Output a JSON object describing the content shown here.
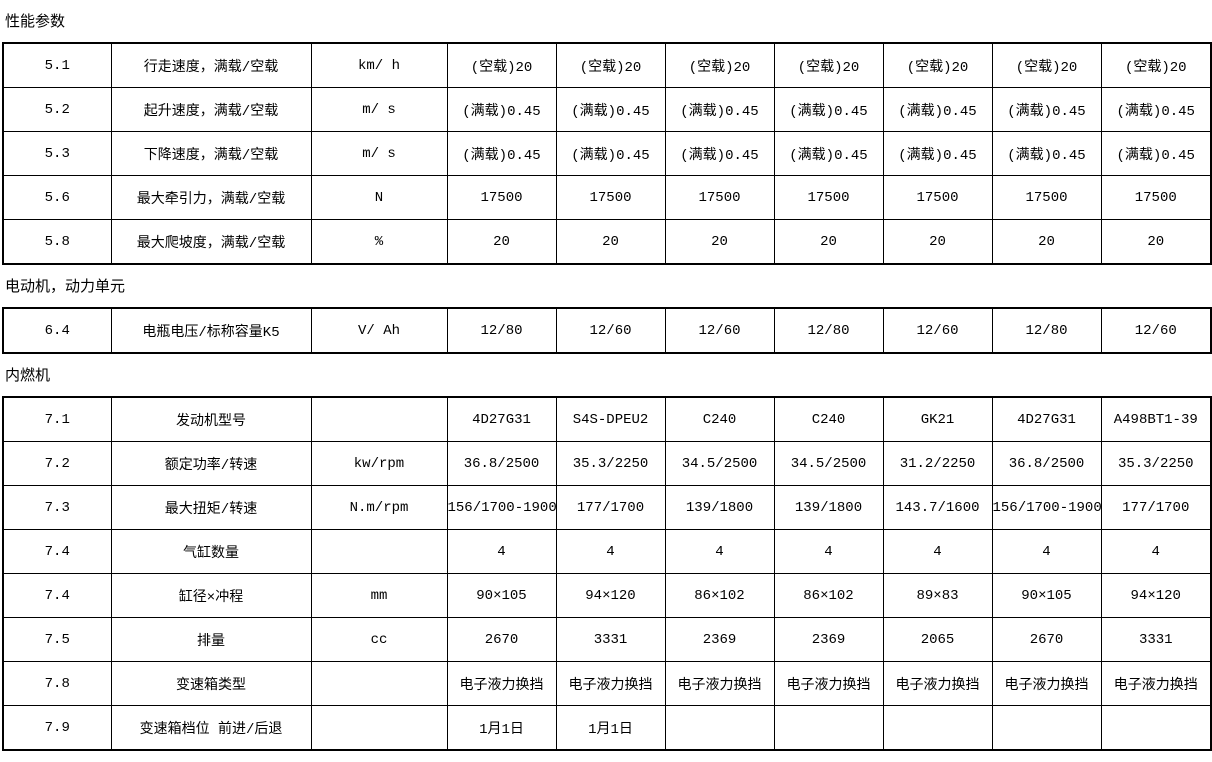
{
  "document": {
    "background": "#ffffff",
    "text_color": "#000000",
    "border_color": "#000000"
  },
  "sections": [
    {
      "title": "性能参数",
      "rows": [
        {
          "no": "5.1",
          "name": "行走速度，满载/空载",
          "unit": "km/ h",
          "values": [
            "(空载)20",
            "(空载)20",
            "(空载)20",
            "(空载)20",
            "(空载)20",
            "(空载)20",
            "(空载)20"
          ]
        },
        {
          "no": "5.2",
          "name": "起升速度，满载/空载",
          "unit": "m/ s",
          "values": [
            "(满载)0.45",
            "(满载)0.45",
            "(满载)0.45",
            "(满载)0.45",
            "(满载)0.45",
            "(满载)0.45",
            "(满载)0.45"
          ]
        },
        {
          "no": "5.3",
          "name": "下降速度，满载/空载",
          "unit": "m/ s",
          "values": [
            "(满载)0.45",
            "(满载)0.45",
            "(满载)0.45",
            "(满载)0.45",
            "(满载)0.45",
            "(满载)0.45",
            "(满载)0.45"
          ]
        },
        {
          "no": "5.6",
          "name": "最大牵引力，满载/空载",
          "unit": "N",
          "values": [
            "17500",
            "17500",
            "17500",
            "17500",
            "17500",
            "17500",
            "17500"
          ]
        },
        {
          "no": "5.8",
          "name": "最大爬坡度，满载/空载",
          "unit": "%",
          "values": [
            "20",
            "20",
            "20",
            "20",
            "20",
            "20",
            "20"
          ]
        }
      ]
    },
    {
      "title": "电动机，动力单元",
      "rows": [
        {
          "no": "6.4",
          "name": "电瓶电压/标称容量K5",
          "unit": "V/ Ah",
          "values": [
            "12/80",
            "12/60",
            "12/60",
            "12/80",
            "12/60",
            "12/80",
            "12/60"
          ]
        }
      ]
    },
    {
      "title": "内燃机",
      "rows": [
        {
          "no": "7.1",
          "name": "发动机型号",
          "unit": "",
          "values": [
            "4D27G31",
            "S4S-DPEU2",
            "C240",
            "C240",
            "GK21",
            "4D27G31",
            "A498BT1-39"
          ]
        },
        {
          "no": "7.2",
          "name": "额定功率/转速",
          "unit": "kw/rpm",
          "values": [
            "36.8/2500",
            "35.3/2250",
            "34.5/2500",
            "34.5/2500",
            "31.2/2250",
            "36.8/2500",
            "35.3/2250"
          ]
        },
        {
          "no": "7.3",
          "name": "最大扭矩/转速",
          "unit": "N.m/rpm",
          "values": [
            "156/1700-1900",
            "177/1700",
            "139/1800",
            "139/1800",
            "143.7/1600",
            "156/1700-1900",
            "177/1700"
          ]
        },
        {
          "no": "7.4",
          "name": "气缸数量",
          "unit": "",
          "values": [
            "4",
            "4",
            "4",
            "4",
            "4",
            "4",
            "4"
          ]
        },
        {
          "no": "7.4",
          "name": "缸径×冲程",
          "unit": "mm",
          "values": [
            "90×105",
            "94×120",
            "86×102",
            "86×102",
            "89×83",
            "90×105",
            "94×120"
          ]
        },
        {
          "no": "7.5",
          "name": "排量",
          "unit": "cc",
          "values": [
            "2670",
            "3331",
            "2369",
            "2369",
            "2065",
            "2670",
            "3331"
          ]
        },
        {
          "no": "7.8",
          "name": "变速箱类型",
          "unit": "",
          "values": [
            "电子液力换挡",
            "电子液力换挡",
            "电子液力换挡",
            "电子液力换挡",
            "电子液力换挡",
            "电子液力换挡",
            "电子液力换挡"
          ]
        },
        {
          "no": "7.9",
          "name": "变速箱档位 前进/后退",
          "unit": "",
          "values": [
            "1月1日",
            "1月1日",
            "",
            "",
            "",
            "",
            ""
          ]
        }
      ]
    }
  ]
}
